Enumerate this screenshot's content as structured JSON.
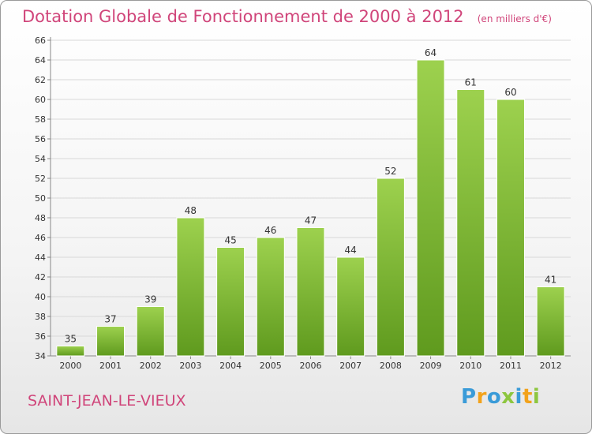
{
  "chart_data": {
    "type": "bar",
    "title": "Dotation Globale de Fonctionnement de 2000 à 2012",
    "unit": "(en milliers d'€)",
    "categories": [
      "2000",
      "2001",
      "2002",
      "2003",
      "2004",
      "2005",
      "2006",
      "2007",
      "2008",
      "2009",
      "2010",
      "2011",
      "2012"
    ],
    "values": [
      35,
      37,
      39,
      48,
      45,
      46,
      47,
      44,
      52,
      64,
      61,
      60,
      41
    ],
    "ylim": [
      34,
      66
    ],
    "yticks": [
      "34",
      "36",
      "38",
      "40",
      "42",
      "44",
      "46",
      "48",
      "50",
      "52",
      "54",
      "56",
      "58",
      "60",
      "62",
      "64",
      "66"
    ],
    "grid": true,
    "bar_color_top": "#9dd14e",
    "bar_color_bottom": "#5f9a1e"
  },
  "commune": "SAINT-JEAN-LE-VIEUX",
  "logo": {
    "letters": [
      "P",
      "r",
      "o",
      "x",
      "i",
      "t",
      "i"
    ],
    "colors": [
      "#3a9bd8",
      "#f2a21b",
      "#3a9bd8",
      "#8dc63f",
      "#3a9bd8",
      "#f2a21b",
      "#8dc63f"
    ]
  },
  "colors": {
    "title": "#d0457a",
    "commune": "#d0457a"
  }
}
